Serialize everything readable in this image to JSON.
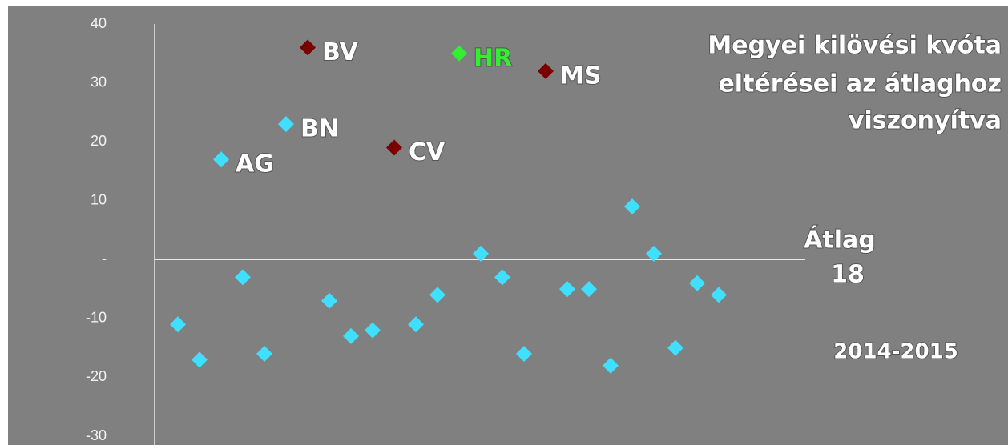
{
  "chart_data": {
    "type": "scatter",
    "title": [
      "Megyei kilövési kvóta",
      "eltérései az átlaghoz",
      "viszonyítva"
    ],
    "annotations": [
      "Átlag",
      "18",
      "2014-2015"
    ],
    "x": [
      1,
      2,
      3,
      4,
      5,
      6,
      7,
      8,
      9,
      10,
      11,
      12,
      13,
      14,
      15,
      16,
      17,
      18,
      19,
      20,
      21,
      22,
      23,
      24,
      25,
      26
    ],
    "values": [
      -11,
      -17,
      17,
      -3,
      -16,
      23,
      36,
      -7,
      -13,
      -12,
      19,
      -11,
      -6,
      35,
      1,
      -3,
      -16,
      32,
      -5,
      -5,
      -18,
      9,
      1,
      -15,
      -4,
      -6
    ],
    "labels": [
      null,
      null,
      "AG",
      null,
      null,
      "BN",
      "BV",
      null,
      null,
      null,
      "CV",
      null,
      null,
      "HR",
      null,
      null,
      null,
      "MS",
      null,
      null,
      null,
      null,
      null,
      null,
      null,
      null
    ],
    "colors": [
      "#3fe0ff",
      "#3fe0ff",
      "#3fe0ff",
      "#3fe0ff",
      "#3fe0ff",
      "#3fe0ff",
      "#7a0000",
      "#3fe0ff",
      "#3fe0ff",
      "#3fe0ff",
      "#7a0000",
      "#3fe0ff",
      "#3fe0ff",
      "#33ee33",
      "#3fe0ff",
      "#3fe0ff",
      "#3fe0ff",
      "#7a0000",
      "#3fe0ff",
      "#3fe0ff",
      "#3fe0ff",
      "#3fe0ff",
      "#3fe0ff",
      "#3fe0ff",
      "#3fe0ff",
      "#3fe0ff"
    ],
    "label_colors": {
      "HR": "#33ee33"
    },
    "xlim": [
      0,
      30
    ],
    "ylim": [
      -30,
      40
    ],
    "yticks": [
      -30,
      -20,
      -10,
      {
        "value": 0,
        "label": "-"
      },
      10,
      20,
      30,
      40
    ]
  }
}
